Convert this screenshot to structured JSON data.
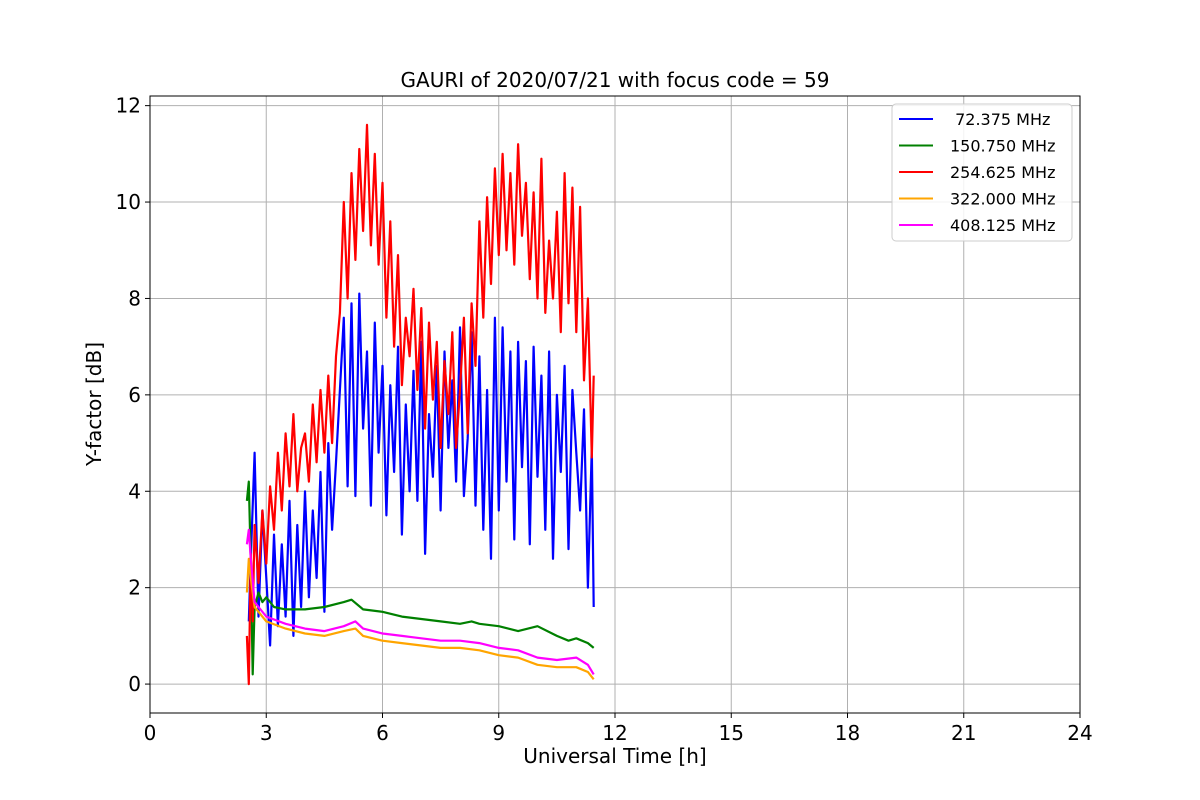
{
  "chart_data": {
    "type": "line",
    "title": "GAURI of 2020/07/21 with focus code = 59",
    "xlabel": "Universal Time [h]",
    "ylabel": "Y-factor [dB]",
    "xlim": [
      0,
      24
    ],
    "ylim": [
      -0.6,
      12.2
    ],
    "xticks": [
      0,
      3,
      6,
      9,
      12,
      15,
      18,
      21,
      24
    ],
    "yticks": [
      0,
      2,
      4,
      6,
      8,
      10,
      12
    ],
    "grid": true,
    "legend_position": "top-right",
    "series": [
      {
        "name": " 72.375 MHz",
        "color": "#0000ff",
        "x": [
          2.55,
          2.6,
          2.7,
          2.8,
          2.9,
          3.0,
          3.1,
          3.2,
          3.3,
          3.4,
          3.5,
          3.6,
          3.7,
          3.8,
          3.9,
          4.0,
          4.1,
          4.2,
          4.3,
          4.4,
          4.5,
          4.6,
          4.7,
          4.8,
          4.9,
          5.0,
          5.1,
          5.2,
          5.3,
          5.4,
          5.5,
          5.6,
          5.7,
          5.8,
          5.9,
          6.0,
          6.1,
          6.2,
          6.3,
          6.4,
          6.5,
          6.6,
          6.7,
          6.8,
          6.9,
          7.0,
          7.1,
          7.2,
          7.3,
          7.4,
          7.5,
          7.6,
          7.7,
          7.8,
          7.9,
          8.0,
          8.1,
          8.2,
          8.3,
          8.4,
          8.5,
          8.6,
          8.7,
          8.8,
          8.9,
          9.0,
          9.1,
          9.2,
          9.3,
          9.4,
          9.5,
          9.6,
          9.7,
          9.8,
          9.9,
          10.0,
          10.1,
          10.2,
          10.3,
          10.4,
          10.5,
          10.6,
          10.7,
          10.8,
          10.9,
          11.0,
          11.1,
          11.2,
          11.3,
          11.4,
          11.45
        ],
        "y": [
          1.3,
          2.6,
          4.8,
          1.4,
          3.6,
          2.2,
          0.8,
          3.1,
          1.2,
          2.9,
          1.4,
          3.8,
          1.0,
          3.3,
          1.6,
          4.0,
          1.8,
          3.6,
          2.2,
          4.4,
          1.5,
          5.0,
          3.2,
          4.6,
          6.1,
          7.6,
          4.1,
          7.9,
          3.9,
          8.1,
          5.3,
          6.9,
          3.7,
          7.5,
          4.8,
          6.6,
          3.5,
          6.2,
          4.4,
          7.0,
          3.1,
          5.8,
          4.0,
          6.5,
          3.8,
          7.1,
          2.7,
          5.6,
          4.3,
          6.6,
          3.6,
          6.9,
          4.9,
          6.3,
          4.2,
          7.4,
          3.9,
          5.1,
          7.3,
          3.7,
          6.8,
          3.2,
          6.1,
          2.6,
          7.6,
          3.6,
          7.4,
          4.2,
          6.9,
          3.0,
          7.1,
          4.5,
          6.7,
          2.9,
          7.0,
          4.3,
          6.4,
          3.2,
          6.9,
          2.6,
          6.0,
          4.4,
          6.6,
          2.8,
          6.1,
          4.8,
          3.6,
          5.7,
          2.0,
          4.9,
          1.6
        ]
      },
      {
        "name": "150.750 MHz",
        "color": "#008000",
        "x": [
          2.5,
          2.55,
          2.6,
          2.65,
          2.7,
          2.8,
          2.9,
          3.0,
          3.2,
          3.5,
          4.0,
          4.5,
          5.0,
          5.2,
          5.5,
          6.0,
          6.5,
          7.0,
          7.5,
          8.0,
          8.3,
          8.5,
          9.0,
          9.5,
          10.0,
          10.5,
          10.8,
          11.0,
          11.3,
          11.45
        ],
        "y": [
          3.8,
          4.2,
          2.5,
          0.2,
          1.6,
          1.9,
          1.7,
          1.8,
          1.6,
          1.55,
          1.55,
          1.6,
          1.7,
          1.75,
          1.55,
          1.5,
          1.4,
          1.35,
          1.3,
          1.25,
          1.3,
          1.25,
          1.2,
          1.1,
          1.2,
          1.0,
          0.9,
          0.95,
          0.85,
          0.75
        ]
      },
      {
        "name": "254.625 MHz",
        "color": "#ff0000",
        "x": [
          2.5,
          2.55,
          2.6,
          2.65,
          2.7,
          2.8,
          2.9,
          3.0,
          3.1,
          3.2,
          3.3,
          3.4,
          3.5,
          3.6,
          3.7,
          3.8,
          3.9,
          4.0,
          4.1,
          4.2,
          4.3,
          4.4,
          4.5,
          4.6,
          4.7,
          4.8,
          4.9,
          5.0,
          5.1,
          5.2,
          5.3,
          5.4,
          5.5,
          5.6,
          5.7,
          5.8,
          5.9,
          6.0,
          6.1,
          6.2,
          6.3,
          6.4,
          6.5,
          6.6,
          6.7,
          6.8,
          6.9,
          7.0,
          7.1,
          7.2,
          7.3,
          7.4,
          7.5,
          7.6,
          7.7,
          7.8,
          7.9,
          8.0,
          8.1,
          8.2,
          8.3,
          8.4,
          8.5,
          8.6,
          8.7,
          8.8,
          8.9,
          9.0,
          9.1,
          9.2,
          9.3,
          9.4,
          9.5,
          9.6,
          9.7,
          9.8,
          9.9,
          10.0,
          10.1,
          10.2,
          10.3,
          10.4,
          10.5,
          10.6,
          10.7,
          10.8,
          10.9,
          11.0,
          11.1,
          11.2,
          11.3,
          11.4,
          11.45
        ],
        "y": [
          1.0,
          0.0,
          2.7,
          1.3,
          3.3,
          2.1,
          3.6,
          2.5,
          4.1,
          3.2,
          4.8,
          3.6,
          5.2,
          4.1,
          5.6,
          4.0,
          4.9,
          5.2,
          4.2,
          5.8,
          4.6,
          6.1,
          4.8,
          6.4,
          5.0,
          6.8,
          7.7,
          10.0,
          8.0,
          10.6,
          8.8,
          11.1,
          9.4,
          11.6,
          9.1,
          11.0,
          8.7,
          10.4,
          7.6,
          9.6,
          7.0,
          8.9,
          6.2,
          7.6,
          6.8,
          8.2,
          6.1,
          7.8,
          5.3,
          7.5,
          5.9,
          7.1,
          4.9,
          6.7,
          5.6,
          7.3,
          4.9,
          6.1,
          7.6,
          5.2,
          7.9,
          6.6,
          9.6,
          7.6,
          10.1,
          8.3,
          10.7,
          8.9,
          11.0,
          9.0,
          10.6,
          8.7,
          11.2,
          9.3,
          10.4,
          8.4,
          10.2,
          8.0,
          10.9,
          7.7,
          9.2,
          8.0,
          9.8,
          7.3,
          10.6,
          7.9,
          10.3,
          7.3,
          9.9,
          6.3,
          8.0,
          4.7,
          6.4
        ]
      },
      {
        "name": "322.000 MHz",
        "color": "#ffa500",
        "x": [
          2.5,
          2.55,
          2.6,
          2.7,
          2.8,
          3.0,
          3.5,
          4.0,
          4.5,
          5.0,
          5.3,
          5.5,
          6.0,
          6.5,
          7.0,
          7.5,
          8.0,
          8.5,
          9.0,
          9.5,
          10.0,
          10.5,
          11.0,
          11.3,
          11.45
        ],
        "y": [
          1.9,
          2.6,
          2.2,
          1.6,
          1.5,
          1.3,
          1.15,
          1.05,
          1.0,
          1.1,
          1.15,
          1.0,
          0.9,
          0.85,
          0.8,
          0.75,
          0.75,
          0.7,
          0.6,
          0.55,
          0.4,
          0.35,
          0.35,
          0.25,
          0.1
        ]
      },
      {
        "name": "408.125 MHz",
        "color": "#ff00ff",
        "x": [
          2.5,
          2.55,
          2.6,
          2.7,
          2.8,
          3.0,
          3.5,
          4.0,
          4.5,
          5.0,
          5.3,
          5.5,
          6.0,
          6.5,
          7.0,
          7.5,
          8.0,
          8.5,
          9.0,
          9.5,
          10.0,
          10.5,
          11.0,
          11.3,
          11.45
        ],
        "y": [
          2.9,
          3.2,
          2.6,
          1.7,
          1.6,
          1.4,
          1.25,
          1.15,
          1.1,
          1.2,
          1.3,
          1.15,
          1.05,
          1.0,
          0.95,
          0.9,
          0.9,
          0.85,
          0.75,
          0.7,
          0.55,
          0.5,
          0.55,
          0.4,
          0.2
        ]
      }
    ]
  }
}
